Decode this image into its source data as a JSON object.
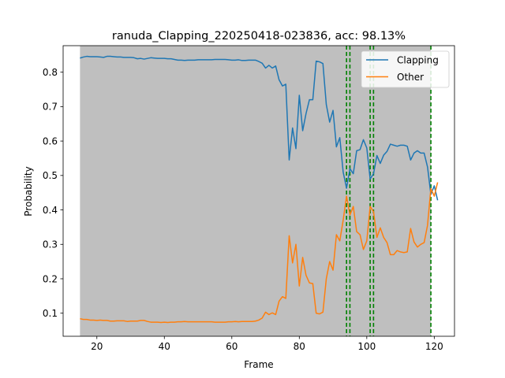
{
  "chart_data": {
    "type": "line",
    "title": "ranuda_Clapping_220250418-023836,  acc: 98.13%",
    "xlabel": "Frame",
    "ylabel": "Probability",
    "xlim": [
      10,
      126
    ],
    "ylim": [
      0.033,
      0.877
    ],
    "xticks": [
      20,
      40,
      60,
      80,
      100,
      120
    ],
    "yticks": [
      0.1,
      0.2,
      0.3,
      0.4,
      0.5,
      0.6,
      0.7,
      0.8
    ],
    "grid": false,
    "legend_position": "top-right",
    "shaded_region": {
      "from": 15,
      "to": 119,
      "color": "#bfbfbf"
    },
    "vlines": {
      "x": [
        94,
        95,
        101,
        102,
        119
      ],
      "color": "#008000",
      "style": "dashed"
    },
    "x": [
      15,
      16,
      17,
      18,
      19,
      20,
      21,
      22,
      23,
      24,
      25,
      26,
      27,
      28,
      29,
      30,
      31,
      32,
      33,
      34,
      35,
      36,
      37,
      38,
      39,
      40,
      41,
      42,
      43,
      44,
      45,
      46,
      47,
      48,
      49,
      50,
      51,
      52,
      53,
      54,
      55,
      56,
      57,
      58,
      59,
      60,
      61,
      62,
      63,
      64,
      65,
      66,
      67,
      68,
      69,
      70,
      71,
      72,
      73,
      74,
      75,
      76,
      77,
      78,
      79,
      80,
      81,
      82,
      83,
      84,
      85,
      86,
      87,
      88,
      89,
      90,
      91,
      92,
      93,
      94,
      95,
      96,
      97,
      98,
      99,
      100,
      101,
      102,
      103,
      104,
      105,
      106,
      107,
      108,
      109,
      110,
      111,
      112,
      113,
      114,
      115,
      116,
      117,
      118,
      119,
      120,
      121
    ],
    "series": [
      {
        "name": "Clapping",
        "color": "#1f77b4",
        "values": [
          0.841,
          0.844,
          0.846,
          0.845,
          0.845,
          0.845,
          0.844,
          0.843,
          0.846,
          0.846,
          0.845,
          0.844,
          0.844,
          0.843,
          0.843,
          0.843,
          0.842,
          0.839,
          0.84,
          0.838,
          0.84,
          0.842,
          0.841,
          0.84,
          0.84,
          0.84,
          0.839,
          0.839,
          0.837,
          0.835,
          0.835,
          0.834,
          0.835,
          0.835,
          0.835,
          0.836,
          0.836,
          0.836,
          0.836,
          0.836,
          0.837,
          0.837,
          0.837,
          0.837,
          0.836,
          0.835,
          0.835,
          0.836,
          0.834,
          0.834,
          0.835,
          0.835,
          0.835,
          0.831,
          0.826,
          0.812,
          0.82,
          0.812,
          0.818,
          0.778,
          0.76,
          0.765,
          0.545,
          0.638,
          0.578,
          0.733,
          0.63,
          0.68,
          0.72,
          0.72,
          0.832,
          0.83,
          0.825,
          0.706,
          0.655,
          0.689,
          0.583,
          0.61,
          0.51,
          0.463,
          0.52,
          0.505,
          0.572,
          0.575,
          0.604,
          0.58,
          0.49,
          0.505,
          0.558,
          0.535,
          0.559,
          0.57,
          0.591,
          0.588,
          0.585,
          0.588,
          0.588,
          0.585,
          0.545,
          0.565,
          0.572,
          0.565,
          0.565,
          0.525,
          0.445,
          0.47,
          0.428
        ]
      },
      {
        "name": "Other",
        "color": "#ff7f0e",
        "values": [
          0.084,
          0.082,
          0.082,
          0.08,
          0.08,
          0.079,
          0.08,
          0.079,
          0.079,
          0.077,
          0.077,
          0.078,
          0.078,
          0.078,
          0.076,
          0.077,
          0.077,
          0.077,
          0.079,
          0.079,
          0.076,
          0.074,
          0.074,
          0.074,
          0.073,
          0.074,
          0.073,
          0.074,
          0.074,
          0.075,
          0.075,
          0.076,
          0.075,
          0.075,
          0.075,
          0.075,
          0.075,
          0.075,
          0.075,
          0.075,
          0.074,
          0.074,
          0.074,
          0.074,
          0.075,
          0.075,
          0.076,
          0.075,
          0.076,
          0.076,
          0.076,
          0.076,
          0.077,
          0.08,
          0.086,
          0.103,
          0.096,
          0.101,
          0.096,
          0.135,
          0.148,
          0.143,
          0.325,
          0.246,
          0.3,
          0.179,
          0.262,
          0.21,
          0.188,
          0.186,
          0.1,
          0.098,
          0.103,
          0.2,
          0.25,
          0.225,
          0.328,
          0.31,
          0.37,
          0.44,
          0.385,
          0.41,
          0.337,
          0.328,
          0.285,
          0.31,
          0.41,
          0.395,
          0.32,
          0.348,
          0.32,
          0.305,
          0.27,
          0.27,
          0.282,
          0.278,
          0.276,
          0.278,
          0.346,
          0.307,
          0.292,
          0.3,
          0.305,
          0.355,
          0.462,
          0.44,
          0.48
        ]
      }
    ]
  }
}
